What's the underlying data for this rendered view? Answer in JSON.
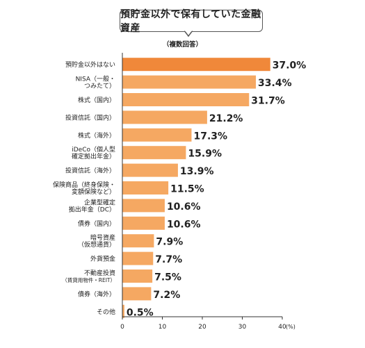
{
  "chart_data": {
    "type": "bar",
    "orientation": "horizontal",
    "title": "預貯金以外で保有していた金融資産",
    "subtitle": "（複数回答）",
    "x_unit": "(%)",
    "xlim": [
      0,
      40
    ],
    "x_ticks": [
      "0",
      "10",
      "20",
      "30",
      "40"
    ],
    "grid": false,
    "categories": [
      [
        "預貯金以外はない"
      ],
      [
        "NISA（一般・",
        "つみたて）"
      ],
      [
        "株式（国内）"
      ],
      [
        "投資信託（国内）"
      ],
      [
        "株式（海外）"
      ],
      [
        "iDeCo（個人型",
        "確定拠出年金）"
      ],
      [
        "投資信託（海外）"
      ],
      [
        "保険商品（終身保険・",
        "変額保険など）"
      ],
      [
        "企業型確定",
        "拠出年金（DC）"
      ],
      [
        "債券（国内）"
      ],
      [
        "暗号資産",
        "（仮想通貨）"
      ],
      [
        "外貨預金"
      ],
      [
        "不動産投資",
        "（賃貸用物件・REIT）"
      ],
      [
        "債券（海外）"
      ],
      [
        "その他"
      ]
    ],
    "values": [
      37.0,
      33.4,
      31.7,
      21.2,
      17.3,
      15.9,
      13.9,
      11.5,
      10.6,
      10.6,
      7.9,
      7.7,
      7.5,
      7.2,
      0.5
    ],
    "value_labels": [
      "37.0%",
      "33.4%",
      "31.7%",
      "21.2%",
      "17.3%",
      "15.9%",
      "13.9%",
      "11.5%",
      "10.6%",
      "10.6%",
      "7.9%",
      "7.7%",
      "7.5%",
      "7.2%",
      "0.5%"
    ],
    "colors": {
      "highlight": "#f0883a",
      "bar": "#f5a862",
      "axis": "#333333"
    },
    "highlight_index": 0
  }
}
